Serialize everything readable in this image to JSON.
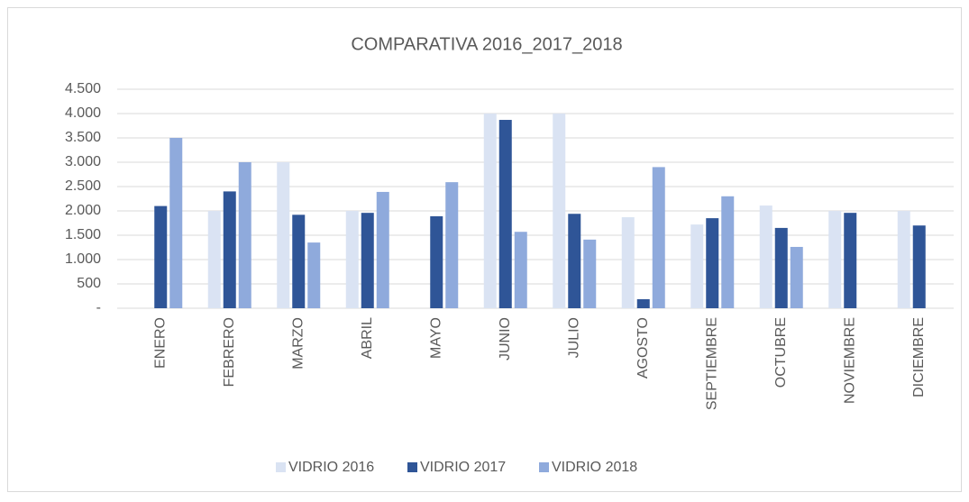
{
  "chart_data": {
    "type": "bar",
    "title": "COMPARATIVA 2016_2017_2018",
    "categories": [
      "ENERO",
      "FEBRERO",
      "MARZO",
      "ABRIL",
      "MAYO",
      "JUNIO",
      "JULIO",
      "AGOSTO",
      "SEPTIEMBRE",
      "OCTUBRE",
      "NOVIEMBRE",
      "DICIEMBRE"
    ],
    "series": [
      {
        "name": "VIDRIO 2016",
        "color": "#dae3f3",
        "values": [
          null,
          2000,
          3000,
          2000,
          null,
          4000,
          4000,
          1870,
          1720,
          2110,
          2000,
          2000
        ]
      },
      {
        "name": "VIDRIO 2017",
        "color": "#2f5597",
        "values": [
          2100,
          2400,
          1920,
          1960,
          1890,
          3870,
          1940,
          185,
          1850,
          1650,
          1960,
          1700
        ]
      },
      {
        "name": "VIDRIO 2018",
        "color": "#8faadc",
        "values": [
          3500,
          3000,
          1350,
          2390,
          2590,
          1570,
          1410,
          2900,
          2300,
          1260,
          null,
          null
        ]
      }
    ],
    "ylim": [
      0,
      4500
    ],
    "yticks": [
      {
        "value": 0,
        "label": "-"
      },
      500,
      {
        "value": 1000,
        "label": "1.000"
      },
      {
        "value": 1500,
        "label": "1.500"
      },
      {
        "value": 2000,
        "label": "2.000"
      },
      {
        "value": 2500,
        "label": "2.500"
      },
      {
        "value": 3000,
        "label": "3.000"
      },
      {
        "value": 3500,
        "label": "3.500"
      },
      {
        "value": 4000,
        "label": "4.000"
      },
      {
        "value": 4500,
        "label": "4.500"
      }
    ],
    "grid": true,
    "legend": "bottom"
  }
}
